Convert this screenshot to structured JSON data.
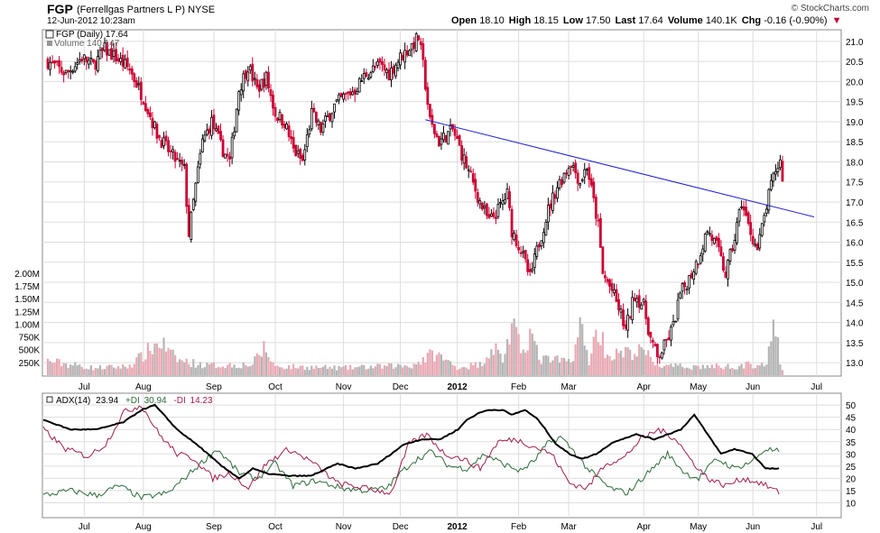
{
  "header": {
    "symbol": "FGP",
    "company": "(Ferrellgas Partners L P)",
    "exchange": "NYSE",
    "date": "12-Jun-2012 10:23am",
    "brand": "© StockCharts.com",
    "open_label": "Open",
    "open": "18.10",
    "high_label": "High",
    "high": "18.15",
    "low_label": "Low",
    "low": "17.50",
    "last_label": "Last",
    "last": "17.64",
    "volume_label": "Volume",
    "volume": "140.1K",
    "chg_label": "Chg",
    "chg": "-0.16 (-0.90%)"
  },
  "colors": {
    "up": "#000000",
    "down": "#cc0033",
    "trend": "#2222cc",
    "adx": "#000000",
    "plus_di": "#2e6b3a",
    "minus_di": "#a0204a",
    "vol_up": "#b4b4b4",
    "vol_down": "#e8a9b4"
  },
  "chart_data": [
    {
      "type": "candlestick",
      "title": "FGP (Daily) 17.64",
      "volume_legend": "Volume 140,147",
      "ylim": [
        12.8,
        21.2
      ],
      "yticks": [
        "21.0",
        "20.5",
        "20.0",
        "19.5",
        "19.0",
        "18.5",
        "18.0",
        "17.5",
        "17.0",
        "16.5",
        "16.0",
        "15.5",
        "15.0",
        "14.5",
        "14.0",
        "13.5",
        "13.0"
      ],
      "volume_ylim_k": [
        0,
        2300
      ],
      "volume_ticks": [
        "2.00M",
        "1.75M",
        "1.50M",
        "1.25M",
        "1.00M",
        "750K",
        "500K",
        "250K"
      ],
      "months": [
        "Jul",
        "Aug",
        "Sep",
        "Oct",
        "Nov",
        "Dec",
        "2012",
        "Feb",
        "Mar",
        "Apr",
        "May",
        "Jun",
        "Jul"
      ],
      "close_path": [
        [
          0,
          20.5
        ],
        [
          8,
          20.2
        ],
        [
          15,
          20.6
        ],
        [
          20,
          20.4
        ],
        [
          25,
          20.8
        ],
        [
          30,
          20.6
        ],
        [
          36,
          20.3
        ],
        [
          42,
          19.6
        ],
        [
          48,
          18.7
        ],
        [
          54,
          18.2
        ],
        [
          60,
          17.8
        ],
        [
          62,
          16.2
        ],
        [
          65,
          17.4
        ],
        [
          68,
          18.5
        ],
        [
          72,
          19.0
        ],
        [
          76,
          18.4
        ],
        [
          80,
          18.0
        ],
        [
          84,
          19.8
        ],
        [
          88,
          20.4
        ],
        [
          92,
          19.8
        ],
        [
          96,
          20.1
        ],
        [
          100,
          19.2
        ],
        [
          104,
          19.0
        ],
        [
          108,
          18.3
        ],
        [
          112,
          18.0
        ],
        [
          116,
          19.2
        ],
        [
          120,
          18.8
        ],
        [
          126,
          19.4
        ],
        [
          130,
          19.6
        ],
        [
          135,
          19.8
        ],
        [
          140,
          20.2
        ],
        [
          146,
          20.4
        ],
        [
          150,
          20.2
        ],
        [
          155,
          20.6
        ],
        [
          160,
          20.9
        ],
        [
          163,
          21.1
        ],
        [
          165,
          20.4
        ],
        [
          168,
          19.0
        ],
        [
          172,
          18.5
        ],
        [
          178,
          18.8
        ],
        [
          182,
          18.2
        ],
        [
          186,
          17.6
        ],
        [
          190,
          17.0
        ],
        [
          194,
          16.5
        ],
        [
          198,
          16.8
        ],
        [
          202,
          17.2
        ],
        [
          204,
          16.3
        ],
        [
          208,
          15.8
        ],
        [
          212,
          15.1
        ],
        [
          216,
          16.0
        ],
        [
          220,
          16.8
        ],
        [
          224,
          17.4
        ],
        [
          228,
          17.8
        ],
        [
          230,
          18.0
        ],
        [
          234,
          17.5
        ],
        [
          237,
          17.9
        ],
        [
          240,
          17.0
        ],
        [
          242,
          16.4
        ],
        [
          244,
          15.2
        ],
        [
          248,
          14.8
        ],
        [
          252,
          14.2
        ],
        [
          254,
          13.8
        ],
        [
          258,
          14.7
        ],
        [
          262,
          14.4
        ],
        [
          265,
          13.6
        ],
        [
          268,
          13.1
        ],
        [
          271,
          13.4
        ],
        [
          275,
          13.9
        ],
        [
          278,
          14.7
        ],
        [
          282,
          15.1
        ],
        [
          286,
          15.6
        ],
        [
          290,
          16.3
        ],
        [
          294,
          15.9
        ],
        [
          298,
          15.2
        ],
        [
          302,
          16.1
        ],
        [
          305,
          17.0
        ],
        [
          308,
          16.4
        ],
        [
          312,
          15.8
        ],
        [
          316,
          16.9
        ],
        [
          318,
          17.4
        ],
        [
          320,
          17.8
        ],
        [
          322,
          18.0
        ],
        [
          323,
          17.64
        ]
      ],
      "trendline": [
        [
          166,
          19.05
        ],
        [
          325,
          16.8
        ]
      ],
      "vol_path_k": [
        [
          0,
          290
        ],
        [
          20,
          150
        ],
        [
          35,
          180
        ],
        [
          42,
          400
        ],
        [
          46,
          580
        ],
        [
          50,
          680
        ],
        [
          54,
          420
        ],
        [
          58,
          300
        ],
        [
          70,
          200
        ],
        [
          90,
          220
        ],
        [
          95,
          560
        ],
        [
          100,
          180
        ],
        [
          130,
          150
        ],
        [
          160,
          200
        ],
        [
          170,
          450
        ],
        [
          180,
          160
        ],
        [
          190,
          220
        ],
        [
          196,
          600
        ],
        [
          200,
          320
        ],
        [
          204,
          1000
        ],
        [
          208,
          500
        ],
        [
          212,
          900
        ],
        [
          216,
          330
        ],
        [
          230,
          280
        ],
        [
          234,
          1000
        ],
        [
          238,
          300
        ],
        [
          242,
          1000
        ],
        [
          246,
          400
        ],
        [
          262,
          500
        ],
        [
          266,
          280
        ],
        [
          270,
          180
        ],
        [
          300,
          180
        ],
        [
          316,
          240
        ],
        [
          320,
          1050
        ],
        [
          322,
          200
        ],
        [
          323,
          90
        ]
      ]
    },
    {
      "type": "line",
      "title": "ADX(14) 23.94",
      "ylim": [
        5,
        53
      ],
      "yticks": [
        "50",
        "45",
        "40",
        "35",
        "30",
        "25",
        "20",
        "15",
        "10"
      ],
      "months": [
        "Jul",
        "Aug",
        "Sep",
        "Oct",
        "Nov",
        "Dec",
        "2012",
        "Feb",
        "Mar",
        "Apr",
        "May",
        "Jun",
        "Jul"
      ],
      "series": [
        {
          "name": "ADX(14)",
          "label": "ADX(14)",
          "value_label": "23.94",
          "points": [
            [
              0,
              44
            ],
            [
              12,
              40
            ],
            [
              24,
              40
            ],
            [
              36,
              43
            ],
            [
              44,
              48
            ],
            [
              50,
              50
            ],
            [
              60,
              40
            ],
            [
              70,
              33
            ],
            [
              80,
              25
            ],
            [
              88,
              20
            ],
            [
              94,
              24
            ],
            [
              100,
              22
            ],
            [
              110,
              21
            ],
            [
              120,
              21
            ],
            [
              132,
              26
            ],
            [
              140,
              24
            ],
            [
              150,
              26
            ],
            [
              156,
              30
            ],
            [
              162,
              34
            ],
            [
              170,
              36
            ],
            [
              178,
              36
            ],
            [
              186,
              40
            ],
            [
              190,
              44
            ],
            [
              196,
              47
            ],
            [
              200,
              48
            ],
            [
              206,
              48
            ],
            [
              210,
              46
            ],
            [
              216,
              48
            ],
            [
              222,
              44
            ],
            [
              230,
              34
            ],
            [
              236,
              30
            ],
            [
              242,
              28
            ],
            [
              248,
              30
            ],
            [
              256,
              35
            ],
            [
              266,
              38
            ],
            [
              274,
              36
            ],
            [
              280,
              38
            ],
            [
              286,
              40
            ],
            [
              292,
              46
            ],
            [
              298,
              38
            ],
            [
              304,
              30
            ],
            [
              310,
              32
            ],
            [
              318,
              30
            ],
            [
              324,
              24
            ],
            [
              330,
              23.94
            ]
          ]
        },
        {
          "name": "+DI",
          "label": "+DI",
          "value_label": "30.94",
          "points": [
            [
              0,
              13
            ],
            [
              12,
              15
            ],
            [
              24,
              13
            ],
            [
              34,
              17
            ],
            [
              44,
              12
            ],
            [
              56,
              14
            ],
            [
              68,
              24
            ],
            [
              78,
              32
            ],
            [
              88,
              22
            ],
            [
              96,
              20
            ],
            [
              104,
              26
            ],
            [
              112,
              17
            ],
            [
              122,
              19
            ],
            [
              134,
              16
            ],
            [
              144,
              15
            ],
            [
              154,
              16
            ],
            [
              160,
              22
            ],
            [
              166,
              27
            ],
            [
              174,
              31
            ],
            [
              182,
              25
            ],
            [
              190,
              24
            ],
            [
              198,
              30
            ],
            [
              206,
              26
            ],
            [
              214,
              23
            ],
            [
              220,
              27
            ],
            [
              226,
              34
            ],
            [
              232,
              37
            ],
            [
              238,
              31
            ],
            [
              244,
              24
            ],
            [
              254,
              16
            ],
            [
              262,
              14
            ],
            [
              272,
              23
            ],
            [
              280,
              30
            ],
            [
              288,
              22
            ],
            [
              294,
              20
            ],
            [
              302,
              28
            ],
            [
              310,
              24
            ],
            [
              318,
              27
            ],
            [
              324,
              32
            ],
            [
              330,
              30.94
            ]
          ]
        },
        {
          "name": "-DI",
          "label": "-DI",
          "value_label": "14.23",
          "points": [
            [
              0,
              40
            ],
            [
              10,
              32
            ],
            [
              20,
              29
            ],
            [
              28,
              34
            ],
            [
              36,
              47
            ],
            [
              44,
              50
            ],
            [
              52,
              38
            ],
            [
              60,
              30
            ],
            [
              68,
              28
            ],
            [
              76,
              20
            ],
            [
              84,
              22
            ],
            [
              92,
              16
            ],
            [
              100,
              26
            ],
            [
              110,
              32
            ],
            [
              120,
              27
            ],
            [
              132,
              18
            ],
            [
              144,
              16
            ],
            [
              156,
              14
            ],
            [
              164,
              34
            ],
            [
              172,
              38
            ],
            [
              180,
              30
            ],
            [
              188,
              28
            ],
            [
              196,
              24
            ],
            [
              204,
              35
            ],
            [
              212,
              36
            ],
            [
              220,
              33
            ],
            [
              228,
              30
            ],
            [
              236,
              18
            ],
            [
              244,
              16
            ],
            [
              252,
              26
            ],
            [
              260,
              28
            ],
            [
              268,
              36
            ],
            [
              276,
              40
            ],
            [
              284,
              36
            ],
            [
              290,
              28
            ],
            [
              298,
              20
            ],
            [
              306,
              17
            ],
            [
              314,
              20
            ],
            [
              322,
              18
            ],
            [
              330,
              14.23
            ]
          ]
        }
      ]
    }
  ]
}
